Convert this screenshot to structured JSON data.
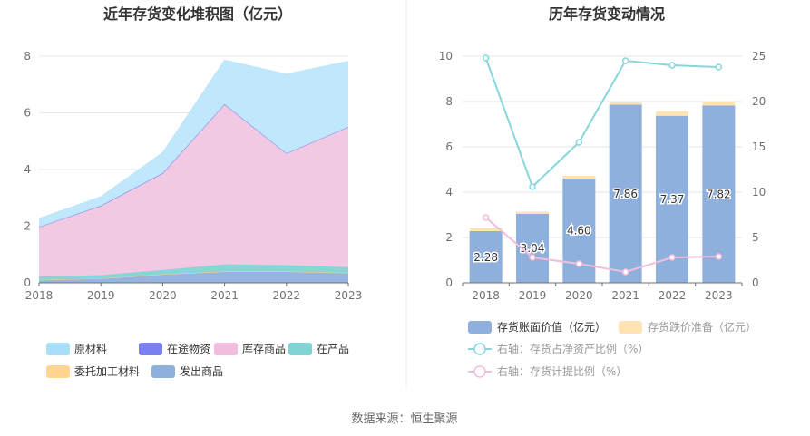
{
  "source": "数据来源：恒生聚源",
  "chart_data": [
    {
      "type": "area",
      "stacked": true,
      "title": "近年存货变化堆积图（亿元）",
      "categories": [
        "2018",
        "2019",
        "2020",
        "2021",
        "2022",
        "2023"
      ],
      "ylim": [
        0,
        8
      ],
      "yticks": [
        "0",
        "2",
        "4",
        "6",
        "8"
      ],
      "grid": true,
      "legend_position": "bottom",
      "series": [
        {
          "name": "发出商品",
          "color": "#8fb0dd",
          "values": [
            0.1,
            0.15,
            0.3,
            0.4,
            0.4,
            0.35
          ]
        },
        {
          "name": "委托加工材料",
          "color": "#ffd591",
          "values": [
            0.0,
            0.0,
            0.0,
            0.0,
            0.0,
            0.0
          ]
        },
        {
          "name": "在产品",
          "color": "#7fd4d4",
          "values": [
            0.12,
            0.12,
            0.15,
            0.25,
            0.22,
            0.2
          ]
        },
        {
          "name": "库存商品",
          "color": "#f0c6e0",
          "values": [
            1.75,
            2.45,
            3.4,
            5.65,
            3.95,
            4.95
          ]
        },
        {
          "name": "在途物资",
          "color": "#7b7ff2",
          "values": [
            0.0,
            0.0,
            0.02,
            0.0,
            0.0,
            0.0
          ]
        },
        {
          "name": "原材料",
          "color": "#bde6fb",
          "values": [
            0.3,
            0.32,
            0.73,
            1.56,
            2.8,
            2.32
          ]
        }
      ],
      "legend": [
        {
          "name": "原材料",
          "color": "#a9def9"
        },
        {
          "name": "在途物资",
          "color": "#7b7ff2"
        },
        {
          "name": "库存商品",
          "color": "#f0bddc"
        },
        {
          "name": "在产品",
          "color": "#7fd4d4"
        },
        {
          "name": "委托加工材料",
          "color": "#ffd591"
        },
        {
          "name": "发出商品",
          "color": "#8fb0dd"
        }
      ]
    },
    {
      "type": "bar",
      "title": "历年存货变动情况",
      "categories": [
        "2018",
        "2019",
        "2020",
        "2021",
        "2022",
        "2023"
      ],
      "ylim": [
        0,
        10
      ],
      "yticks": [
        "0",
        "2",
        "4",
        "6",
        "8",
        "10"
      ],
      "y2lim": [
        0,
        25
      ],
      "y2ticks": [
        "0",
        "5",
        "10",
        "15",
        "20",
        "25"
      ],
      "grid": true,
      "legend_position": "bottom",
      "series": [
        {
          "name": "存货账面价值（亿元）",
          "kind": "bar",
          "axis": "left",
          "color": "#8fb0dd",
          "values": [
            2.28,
            3.04,
            4.6,
            7.86,
            7.37,
            7.82
          ],
          "labels": [
            "2.28",
            "3.04",
            "4.60",
            "7.86",
            "7.37",
            "7.82"
          ]
        },
        {
          "name": "存货跌价准备（亿元）",
          "kind": "bar",
          "axis": "left",
          "color": "#ffe3b3",
          "values": [
            0.15,
            0.1,
            0.12,
            0.1,
            0.2,
            0.2
          ]
        },
        {
          "name": "右轴：存货占净资产比例（%）",
          "kind": "line",
          "axis": "right",
          "color": "#86d6dc",
          "values": [
            24.8,
            10.6,
            15.5,
            24.5,
            24.0,
            23.8
          ]
        },
        {
          "name": "右轴：存货计提比例（%）",
          "kind": "line",
          "axis": "right",
          "color": "#f0bddc",
          "values": [
            7.2,
            2.8,
            2.1,
            1.2,
            2.8,
            2.9
          ]
        }
      ]
    }
  ]
}
